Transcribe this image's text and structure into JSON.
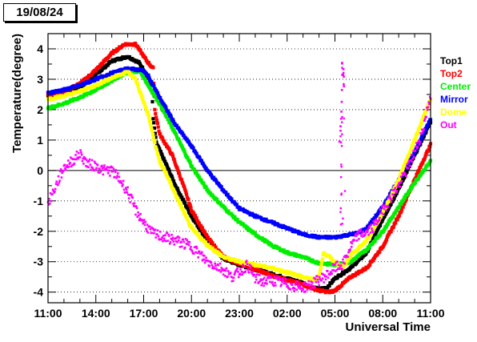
{
  "date_label": "19/08/24",
  "chart_data": {
    "type": "scatter",
    "title": "",
    "xlabel": "Universal Time",
    "ylabel": "Temperature(degree)",
    "x_unit": "hours since 11:00 (19/08/24)",
    "x_ticks": [
      "11:00",
      "14:00",
      "17:00",
      "20:00",
      "23:00",
      "02:00",
      "05:00",
      "08:00",
      "11:00"
    ],
    "xlim": [
      0,
      24
    ],
    "ylim": [
      -4.35,
      4.5
    ],
    "y_ticks": [
      "4",
      "3",
      "2",
      "1",
      "0",
      "-1",
      "-2",
      "-3",
      "-4"
    ],
    "grid": "horizontal dotted",
    "legend_position": "right",
    "series": [
      {
        "name": "Top1",
        "color": "#000000",
        "points": [
          [
            0,
            2.45
          ],
          [
            1,
            2.55
          ],
          [
            2,
            2.75
          ],
          [
            3,
            3.15
          ],
          [
            4,
            3.6
          ],
          [
            5,
            3.75
          ],
          [
            5.7,
            3.55
          ],
          [
            6.2,
            3.15
          ],
          [
            6.5,
            2.8
          ],
          [
            6.6,
            1.7
          ],
          [
            6.8,
            0.9
          ],
          [
            7.5,
            0.1
          ],
          [
            8,
            -0.5
          ],
          [
            9,
            -1.5
          ],
          [
            10,
            -2.3
          ],
          [
            11,
            -2.9
          ],
          [
            12,
            -3.1
          ],
          [
            13,
            -3.25
          ],
          [
            14,
            -3.4
          ],
          [
            15,
            -3.55
          ],
          [
            16,
            -3.7
          ],
          [
            16.5,
            -3.85
          ],
          [
            17,
            -3.9
          ],
          [
            17.5,
            -3.85
          ],
          [
            18,
            -3.55
          ],
          [
            19,
            -3.2
          ],
          [
            20,
            -2.7
          ],
          [
            21,
            -1.6
          ],
          [
            22,
            -0.6
          ],
          [
            23,
            0.5
          ],
          [
            24,
            1.6
          ]
        ]
      },
      {
        "name": "Top2",
        "color": "#ff0000",
        "points": [
          [
            0,
            2.5
          ],
          [
            1,
            2.6
          ],
          [
            2,
            2.85
          ],
          [
            3,
            3.3
          ],
          [
            4,
            3.85
          ],
          [
            4.8,
            4.15
          ],
          [
            5.5,
            4.15
          ],
          [
            6.2,
            3.6
          ],
          [
            6.6,
            3.35
          ],
          [
            6.7,
            2.0
          ],
          [
            7,
            1.2
          ],
          [
            7.8,
            0.5
          ],
          [
            8.5,
            -0.5
          ],
          [
            9,
            -1.3
          ],
          [
            10,
            -2.2
          ],
          [
            11,
            -2.85
          ],
          [
            12,
            -3.05
          ],
          [
            13,
            -3.25
          ],
          [
            14,
            -3.45
          ],
          [
            15,
            -3.6
          ],
          [
            16,
            -3.75
          ],
          [
            17,
            -3.95
          ],
          [
            17.7,
            -4.0
          ],
          [
            18,
            -3.95
          ],
          [
            19,
            -3.5
          ],
          [
            20,
            -3.2
          ],
          [
            21,
            -2.5
          ],
          [
            22,
            -1.5
          ],
          [
            23,
            -0.3
          ],
          [
            24,
            0.85
          ]
        ]
      },
      {
        "name": "Center",
        "color": "#00ee00",
        "points": [
          [
            0,
            2.05
          ],
          [
            1,
            2.2
          ],
          [
            2,
            2.4
          ],
          [
            3,
            2.65
          ],
          [
            4,
            2.95
          ],
          [
            5,
            3.25
          ],
          [
            5.8,
            3.25
          ],
          [
            6.4,
            2.7
          ],
          [
            7,
            2.2
          ],
          [
            8,
            1.2
          ],
          [
            9,
            0.15
          ],
          [
            10,
            -0.65
          ],
          [
            11,
            -1.2
          ],
          [
            12,
            -1.7
          ],
          [
            13,
            -2.1
          ],
          [
            14,
            -2.45
          ],
          [
            15,
            -2.7
          ],
          [
            16,
            -2.85
          ],
          [
            17,
            -3.05
          ],
          [
            18,
            -3.1
          ],
          [
            19,
            -3.0
          ],
          [
            20,
            -2.6
          ],
          [
            21,
            -2.0
          ],
          [
            22,
            -1.2
          ],
          [
            23,
            -0.4
          ],
          [
            24,
            0.3
          ]
        ]
      },
      {
        "name": "Mirror",
        "color": "#0000ff",
        "points": [
          [
            0,
            2.55
          ],
          [
            1,
            2.65
          ],
          [
            2,
            2.8
          ],
          [
            3,
            3.0
          ],
          [
            4,
            3.2
          ],
          [
            5,
            3.35
          ],
          [
            5.9,
            3.3
          ],
          [
            6.3,
            3.1
          ],
          [
            7,
            2.4
          ],
          [
            8,
            1.5
          ],
          [
            9,
            0.8
          ],
          [
            10,
            0.0
          ],
          [
            11,
            -0.65
          ],
          [
            12,
            -1.25
          ],
          [
            13,
            -1.5
          ],
          [
            14,
            -1.7
          ],
          [
            15,
            -1.9
          ],
          [
            16,
            -2.1
          ],
          [
            17,
            -2.2
          ],
          [
            18,
            -2.2
          ],
          [
            19,
            -2.1
          ],
          [
            19.5,
            -2.05
          ],
          [
            20,
            -1.9
          ],
          [
            21,
            -1.2
          ],
          [
            22,
            -0.3
          ],
          [
            23,
            0.6
          ],
          [
            24,
            1.7
          ]
        ]
      },
      {
        "name": "Dome",
        "color": "#ffff00",
        "points": [
          [
            0,
            2.35
          ],
          [
            1,
            2.45
          ],
          [
            2,
            2.6
          ],
          [
            3,
            2.8
          ],
          [
            4,
            3.05
          ],
          [
            5,
            3.25
          ],
          [
            5.5,
            3.0
          ],
          [
            5.9,
            2.4
          ],
          [
            6.3,
            1.8
          ],
          [
            6.7,
            0.9
          ],
          [
            7,
            0.3
          ],
          [
            7.5,
            -0.2
          ],
          [
            8,
            -0.8
          ],
          [
            9,
            -1.9
          ],
          [
            10,
            -2.45
          ],
          [
            11,
            -2.85
          ],
          [
            12,
            -3.0
          ],
          [
            13,
            -3.1
          ],
          [
            14,
            -3.2
          ],
          [
            15,
            -3.35
          ],
          [
            16,
            -3.5
          ],
          [
            16.7,
            -3.6
          ],
          [
            17,
            -3.5
          ],
          [
            17.3,
            -2.7
          ],
          [
            18,
            -3.0
          ],
          [
            18.5,
            -3.2
          ],
          [
            19,
            -2.8
          ],
          [
            20,
            -2.3
          ],
          [
            21,
            -1.4
          ],
          [
            22,
            -0.3
          ],
          [
            23,
            1.0
          ],
          [
            24,
            2.35
          ]
        ]
      },
      {
        "name": "Out",
        "color": "#ff00ff",
        "points": [
          [
            0,
            -1.1
          ],
          [
            0.5,
            -0.5
          ],
          [
            1,
            0.1
          ],
          [
            1.5,
            0.3
          ],
          [
            2,
            0.55
          ],
          [
            2.5,
            0.2
          ],
          [
            3,
            0.15
          ],
          [
            3.5,
            0.0
          ],
          [
            4,
            0.0
          ],
          [
            4.5,
            -0.3
          ],
          [
            5,
            -0.7
          ],
          [
            5.5,
            -1.3
          ],
          [
            6,
            -1.7
          ],
          [
            6.5,
            -2.05
          ],
          [
            7,
            -2.15
          ],
          [
            8,
            -2.3
          ],
          [
            9,
            -2.5
          ],
          [
            9.5,
            -2.75
          ],
          [
            10,
            -3.0
          ],
          [
            11,
            -3.25
          ],
          [
            11.5,
            -3.5
          ],
          [
            12,
            -3.35
          ],
          [
            12.5,
            -3.1
          ],
          [
            13,
            -3.55
          ],
          [
            13.5,
            -3.65
          ],
          [
            14,
            -3.6
          ],
          [
            15,
            -3.75
          ],
          [
            16,
            -3.85
          ],
          [
            16.5,
            -3.75
          ],
          [
            17,
            -3.6
          ],
          [
            17.5,
            -3.45
          ],
          [
            18,
            -3.2
          ],
          [
            18.5,
            -3.1
          ],
          [
            19,
            -2.5
          ],
          [
            19.5,
            -2.1
          ],
          [
            20,
            -2.05
          ],
          [
            20.5,
            -1.8
          ],
          [
            21,
            -1.3
          ],
          [
            21.5,
            -0.9
          ],
          [
            22,
            -0.5
          ],
          [
            22.5,
            0.0
          ],
          [
            23,
            0.6
          ],
          [
            23.5,
            1.3
          ],
          [
            24,
            2.5
          ]
        ],
        "spike_points": [
          [
            18.3,
            1.0
          ],
          [
            18.4,
            2.2
          ],
          [
            18.45,
            3.6
          ],
          [
            18.55,
            3.2
          ],
          [
            18.6,
            2.7
          ],
          [
            18.5,
            -1.5
          ],
          [
            18.6,
            -2.0
          ]
        ]
      }
    ]
  }
}
